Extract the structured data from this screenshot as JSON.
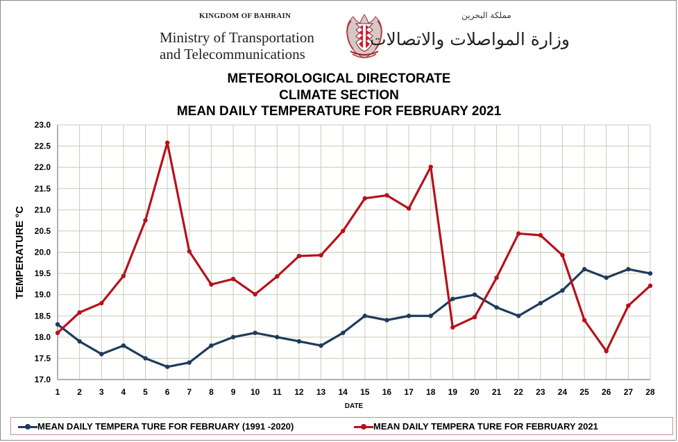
{
  "header": {
    "kingdom_text": "KINGDOM OF BAHRAIN",
    "ministry_line1": "Ministry of Transportation",
    "ministry_line2": "and Telecommunications",
    "arabic_kingdom": "مملكة البحرين",
    "arabic_ministry": "وزارة المواصلات والاتصالات",
    "crest_icon": "bahrain-crest-icon"
  },
  "titles": {
    "line1": "METEOROLOGICAL  DIRECTORATE",
    "line2": "CLIMATE  SECTION",
    "line3": "MEAN  DAILY  TEMPERATURE  FOR  FEBRUARY  2021"
  },
  "colors": {
    "normal_series": "#1f3b5b",
    "current_series": "#b5121b",
    "grid": "#c8cbb4",
    "axis": "#7f7f7f",
    "legend_border": "#c88d8d"
  },
  "chart_data": {
    "type": "line",
    "title": "MEAN  DAILY  TEMPERATURE  FOR  FEBRUARY  2021",
    "xlabel": "DATE",
    "ylabel": "TEMPERATURE °C",
    "x": [
      1,
      2,
      3,
      4,
      5,
      6,
      7,
      8,
      9,
      10,
      11,
      12,
      13,
      14,
      15,
      16,
      17,
      18,
      19,
      20,
      21,
      22,
      23,
      24,
      25,
      26,
      27,
      28
    ],
    "ylim": [
      17.0,
      23.0
    ],
    "ytick_step": 0.5,
    "grid": true,
    "legend_position": "bottom",
    "series": [
      {
        "name": "MEAN DAILY TEMPERA TURE FOR FEBRUARY (1991 -2020)",
        "values": [
          18.3,
          17.9,
          17.6,
          17.8,
          17.5,
          17.3,
          17.4,
          17.8,
          18.0,
          18.1,
          18.0,
          17.9,
          17.8,
          18.1,
          18.5,
          18.4,
          18.5,
          18.5,
          18.9,
          19.0,
          18.7,
          18.5,
          18.8,
          19.1,
          19.6,
          19.4,
          19.6,
          19.5
        ]
      },
      {
        "name": "MEAN DAILY TEMPERA TURE FOR FEBRUARY 2021",
        "values": [
          18.1,
          18.58,
          18.8,
          19.44,
          20.75,
          22.58,
          20.02,
          19.24,
          19.37,
          19.01,
          19.43,
          19.91,
          19.93,
          20.5,
          21.27,
          21.34,
          21.03,
          22.01,
          18.23,
          18.47,
          19.4,
          20.44,
          20.4,
          19.93,
          18.4,
          17.67,
          18.74,
          19.21
        ]
      }
    ]
  }
}
